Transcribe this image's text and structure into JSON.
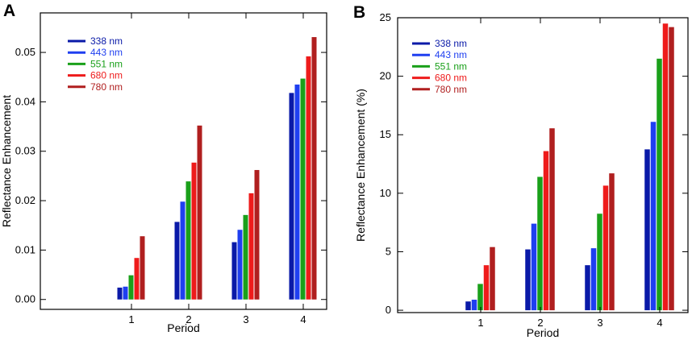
{
  "chart_data": [
    {
      "panel": "A",
      "type": "bar",
      "xlabel": "Period",
      "ylabel": "Reflectance Enhancement",
      "ylim": [
        -0.002,
        0.058
      ],
      "yticks": [
        0.0,
        0.01,
        0.02,
        0.03,
        0.04,
        0.05
      ],
      "ytick_labels": [
        "0.00",
        "0.01",
        "0.02",
        "0.03",
        "0.04",
        "0.05"
      ],
      "categories": [
        "1",
        "2",
        "3",
        "4"
      ],
      "series": [
        {
          "name": "338 nm",
          "color": "#0a1aa8",
          "values": [
            0.0024,
            0.0157,
            0.0116,
            0.0418
          ]
        },
        {
          "name": "443 nm",
          "color": "#1f3ff0",
          "values": [
            0.0026,
            0.0198,
            0.0141,
            0.0435
          ]
        },
        {
          "name": "551 nm",
          "color": "#1aa01a",
          "values": [
            0.0049,
            0.0239,
            0.0171,
            0.0447
          ]
        },
        {
          "name": "680 nm",
          "color": "#ee1b1b",
          "values": [
            0.0084,
            0.0277,
            0.0215,
            0.0492
          ]
        },
        {
          "name": "780 nm",
          "color": "#b01f1f",
          "values": [
            0.0128,
            0.0352,
            0.0262,
            0.0531
          ]
        }
      ],
      "legend_position": "top-left"
    },
    {
      "panel": "B",
      "type": "bar",
      "xlabel": "Period",
      "ylabel": "Reflectance Enhancement (%)",
      "ylim": [
        -0.2,
        25
      ],
      "yticks": [
        0,
        5,
        10,
        15,
        20,
        25
      ],
      "ytick_labels": [
        "0",
        "5",
        "10",
        "15",
        "20",
        "25"
      ],
      "categories": [
        "1",
        "2",
        "3",
        "4"
      ],
      "series": [
        {
          "name": "338 nm",
          "color": "#0a1aa8",
          "values": [
            0.75,
            5.2,
            3.85,
            13.75
          ]
        },
        {
          "name": "443 nm",
          "color": "#1f3ff0",
          "values": [
            0.9,
            7.4,
            5.3,
            16.1
          ]
        },
        {
          "name": "551 nm",
          "color": "#1aa01a",
          "values": [
            2.25,
            11.4,
            8.25,
            21.5
          ]
        },
        {
          "name": "680 nm",
          "color": "#ee1b1b",
          "values": [
            3.85,
            13.6,
            10.65,
            24.5
          ]
        },
        {
          "name": "780 nm",
          "color": "#b01f1f",
          "values": [
            5.4,
            15.55,
            11.7,
            24.2
          ]
        }
      ],
      "legend_position": "top-left"
    }
  ]
}
